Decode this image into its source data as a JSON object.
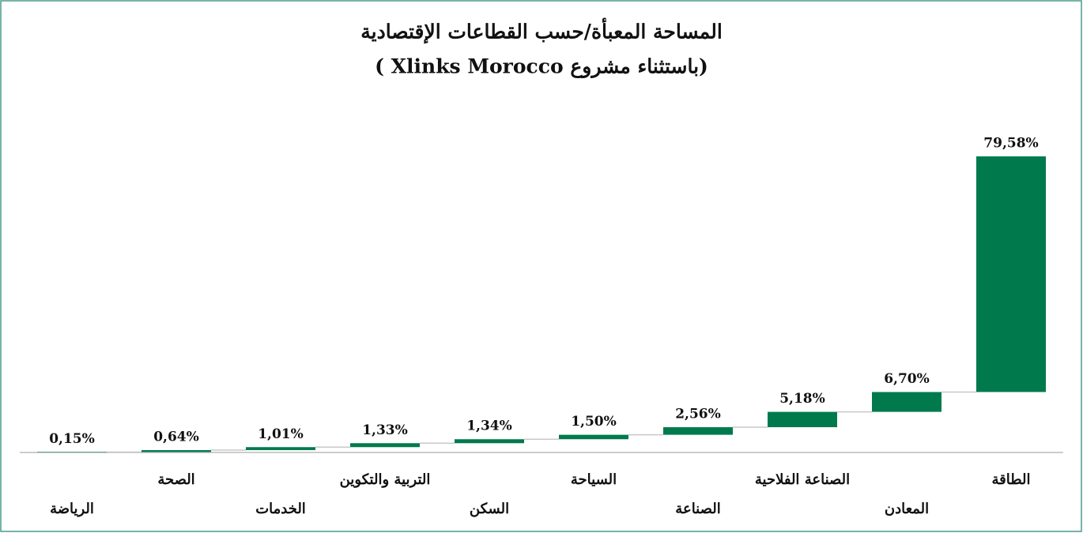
{
  "chart_data": {
    "type": "waterfall",
    "title": "المساحة المعبأة/حسب القطاعات الإقتصادية",
    "subtitle": "(باستثناء مشروع Xlinks Morocco )",
    "categories": [
      "الرياضة",
      "الصحة",
      "الخدمات",
      "التربية والتكوين",
      "السكن",
      "السياحة",
      "الصناعة",
      "الصناعة الفلاحية",
      "المعادن",
      "الطاقة"
    ],
    "values": [
      0.15,
      0.64,
      1.01,
      1.33,
      1.34,
      1.5,
      2.56,
      5.18,
      6.7,
      79.58
    ],
    "value_labels": [
      "0,15%",
      "0,64%",
      "1,01%",
      "1,33%",
      "1,34%",
      "1,50%",
      "2,56%",
      "5,18%",
      "6,70%",
      "79,58%"
    ],
    "color": "#007a4d",
    "ylim": [
      0,
      100
    ]
  }
}
